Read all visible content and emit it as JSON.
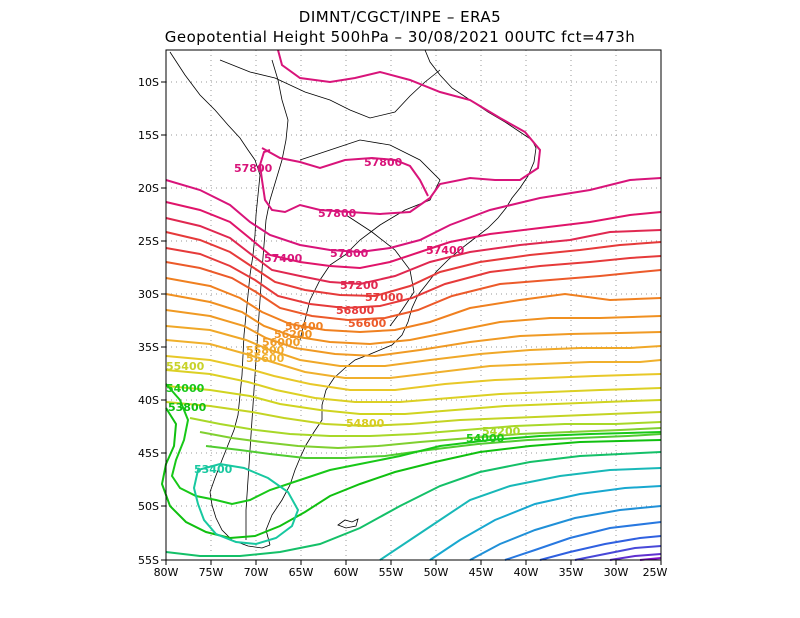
{
  "header": {
    "line1": "DIMNT/CGCT/INPE –  ERA5",
    "line2": "Geopotential Height 500hPa –  30/08/2021 00UTC fct=473h"
  },
  "axes": {
    "lat_ticks": [
      "10S",
      "15S",
      "20S",
      "25S",
      "30S",
      "35S",
      "40S",
      "45S",
      "50S",
      "55S"
    ],
    "lon_ticks": [
      "80W",
      "75W",
      "70W",
      "65W",
      "60W",
      "55W",
      "50W",
      "45W",
      "40W",
      "35W",
      "30W",
      "25W"
    ]
  },
  "contour_labels": [
    {
      "text": "57800",
      "color": "#d8147a"
    },
    {
      "text": "57800",
      "color": "#d8147a"
    },
    {
      "text": "57800",
      "color": "#d8147a"
    },
    {
      "text": "57600",
      "color": "#d8147a"
    },
    {
      "text": "57400",
      "color": "#d8147a"
    },
    {
      "text": "57400",
      "color": "#e0146a"
    },
    {
      "text": "57200",
      "color": "#e02850"
    },
    {
      "text": "57000",
      "color": "#e63a3a"
    },
    {
      "text": "56800",
      "color": "#e63a3a"
    },
    {
      "text": "56600",
      "color": "#ec5a2a"
    },
    {
      "text": "56400",
      "color": "#f08020"
    },
    {
      "text": "56200",
      "color": "#f09020"
    },
    {
      "text": "56000",
      "color": "#f09a24"
    },
    {
      "text": "55800",
      "color": "#f0a828"
    },
    {
      "text": "55600",
      "color": "#f0b02c"
    },
    {
      "text": "55400",
      "color": "#c8d22a"
    },
    {
      "text": "54800",
      "color": "#d8cc1e"
    },
    {
      "text": "54200",
      "color": "#a8d828"
    },
    {
      "text": "54000",
      "color": "#18c818"
    },
    {
      "text": "54000",
      "color": "#18c818"
    },
    {
      "text": "53800",
      "color": "#10c010"
    },
    {
      "text": "53400",
      "color": "#18c8a0"
    }
  ],
  "colors": {
    "pink": "#d8147a",
    "red": "#e63a3a",
    "orange": "#f08020",
    "yellow": "#d8d020",
    "green": "#18c818",
    "cyan": "#18b8c8",
    "blue": "#3050e0",
    "purple": "#8010c8"
  }
}
